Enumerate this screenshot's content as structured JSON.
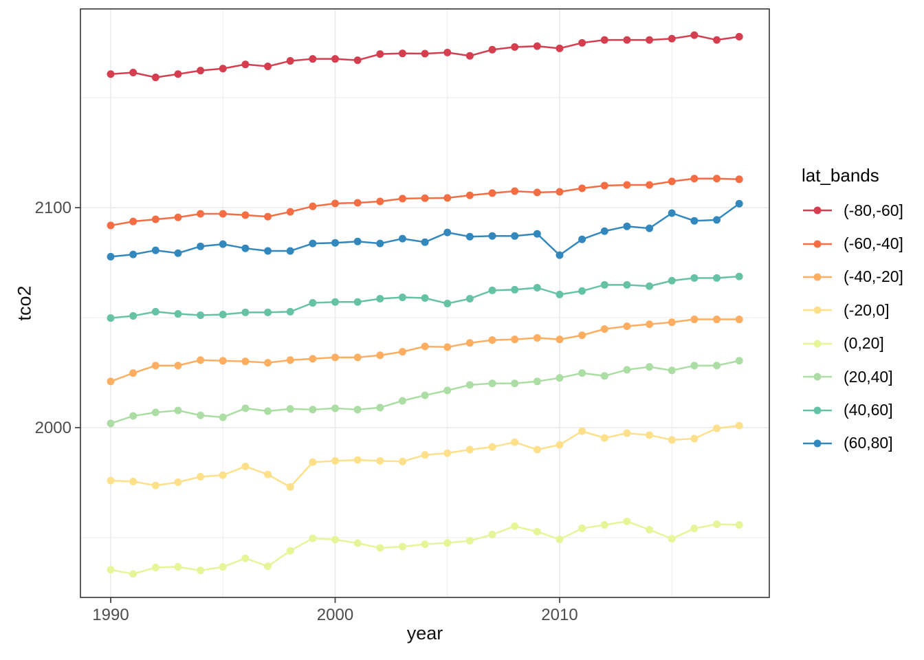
{
  "figure": {
    "background_color": "#FFFFFF",
    "panel_fill": "#FFFFFF",
    "panel_border_color": "#343434",
    "grid_color": "#EBEBEB",
    "tick_label_color": "#4D4D4D",
    "axis_title_color": "#111111"
  },
  "legend": {
    "title": "lat_bands",
    "position": "right"
  },
  "chart_data": {
    "type": "line",
    "title": "",
    "xlabel": "year",
    "ylabel": "tco2",
    "grid": true,
    "legend_position": "right",
    "marker": "filled-circle",
    "x_range": [
      1988.6,
      2019.4
    ],
    "y_range": [
      1922.8,
      2190.0
    ],
    "x_ticks": [
      1990,
      2000,
      2010
    ],
    "x_tick_labels": [
      "1990",
      "2000",
      "2010"
    ],
    "x_minor_ticks": [
      1995,
      2005,
      2015
    ],
    "y_ticks": [
      2000,
      2100
    ],
    "y_tick_labels": [
      "2000",
      "2100"
    ],
    "y_minor_ticks": [
      1950,
      2050,
      2150
    ],
    "x": [
      1990,
      1991,
      1992,
      1993,
      1994,
      1995,
      1996,
      1997,
      1998,
      1999,
      2000,
      2001,
      2002,
      2003,
      2004,
      2005,
      2006,
      2007,
      2008,
      2009,
      2010,
      2011,
      2012,
      2013,
      2014,
      2015,
      2016,
      2017,
      2018
    ],
    "series": [
      {
        "label": "(-80,-60]",
        "color": "#D53E4F",
        "values": [
          2160.7,
          2161.4,
          2159.2,
          2160.7,
          2162.3,
          2163.2,
          2165.1,
          2164.2,
          2166.7,
          2167.6,
          2167.6,
          2167.0,
          2169.8,
          2170.1,
          2170.0,
          2170.5,
          2169.0,
          2171.8,
          2173.0,
          2173.4,
          2172.4,
          2174.9,
          2176.2,
          2176.2,
          2176.2,
          2176.8,
          2178.4,
          2176.2,
          2177.7
        ]
      },
      {
        "label": "(-60,-40]",
        "color": "#F46D43",
        "values": [
          2091.9,
          2093.7,
          2094.7,
          2095.6,
          2097.2,
          2097.2,
          2096.6,
          2095.9,
          2098.1,
          2100.6,
          2101.9,
          2102.2,
          2102.8,
          2104.1,
          2104.3,
          2104.4,
          2105.6,
          2106.6,
          2107.5,
          2106.9,
          2107.2,
          2108.8,
          2110.0,
          2110.3,
          2110.3,
          2111.9,
          2113.2,
          2113.2,
          2112.9
        ]
      },
      {
        "label": "(-40,-20]",
        "color": "#FDAE61",
        "values": [
          2021.0,
          2024.8,
          2028.2,
          2028.2,
          2030.7,
          2030.4,
          2030.1,
          2029.5,
          2030.7,
          2031.3,
          2031.9,
          2031.9,
          2032.9,
          2034.5,
          2036.9,
          2036.6,
          2038.5,
          2039.8,
          2040.1,
          2040.8,
          2040.1,
          2042.0,
          2044.8,
          2046.1,
          2047.0,
          2047.9,
          2049.2,
          2049.2,
          2049.2
        ]
      },
      {
        "label": "(-20,0]",
        "color": "#FEE08B",
        "values": [
          1975.9,
          1975.5,
          1973.7,
          1975.2,
          1977.7,
          1978.4,
          1982.4,
          1978.7,
          1973.0,
          1984.3,
          1984.9,
          1985.3,
          1984.9,
          1984.6,
          1987.6,
          1988.4,
          1990.0,
          1991.2,
          1993.4,
          1990.0,
          1992.2,
          1998.4,
          1995.3,
          1997.5,
          1996.6,
          1994.4,
          1995.0,
          1999.7,
          2000.9
        ]
      },
      {
        "label": "(0,20]",
        "color": "#E6F598",
        "values": [
          1935.4,
          1933.5,
          1936.4,
          1936.7,
          1935.1,
          1936.7,
          1940.6,
          1937.0,
          1944.0,
          1949.7,
          1949.1,
          1947.5,
          1945.3,
          1945.9,
          1947.0,
          1947.6,
          1948.6,
          1951.4,
          1955.2,
          1952.7,
          1949.2,
          1954.2,
          1955.8,
          1957.4,
          1953.6,
          1949.5,
          1954.2,
          1956.1,
          1955.8
        ]
      },
      {
        "label": "(20,40]",
        "color": "#ABDDA4",
        "values": [
          2001.9,
          2005.3,
          2006.9,
          2007.8,
          2005.6,
          2004.7,
          2008.8,
          2007.5,
          2008.5,
          2008.2,
          2008.8,
          2008.2,
          2009.1,
          2012.2,
          2014.7,
          2016.9,
          2019.4,
          2020.1,
          2020.1,
          2021.0,
          2022.6,
          2024.8,
          2023.5,
          2026.3,
          2027.6,
          2026.0,
          2028.2,
          2028.2,
          2030.4
        ]
      },
      {
        "label": "(40,60]",
        "color": "#66C2A5",
        "values": [
          2049.8,
          2050.8,
          2052.7,
          2051.7,
          2051.1,
          2051.4,
          2052.4,
          2052.4,
          2052.7,
          2056.7,
          2057.1,
          2057.1,
          2058.6,
          2059.2,
          2058.9,
          2056.4,
          2058.6,
          2062.4,
          2062.7,
          2063.6,
          2060.5,
          2062.1,
          2064.9,
          2064.9,
          2064.3,
          2066.8,
          2068.0,
          2068.0,
          2068.7
        ]
      },
      {
        "label": "(60,80]",
        "color": "#3288BD",
        "values": [
          2077.7,
          2078.7,
          2080.6,
          2079.3,
          2082.4,
          2083.4,
          2081.5,
          2080.3,
          2080.3,
          2083.7,
          2084.0,
          2084.6,
          2083.7,
          2085.9,
          2084.3,
          2088.7,
          2086.8,
          2087.1,
          2087.1,
          2088.1,
          2078.4,
          2085.6,
          2089.3,
          2091.5,
          2090.6,
          2097.5,
          2094.0,
          2094.4,
          2101.8
        ]
      }
    ]
  }
}
